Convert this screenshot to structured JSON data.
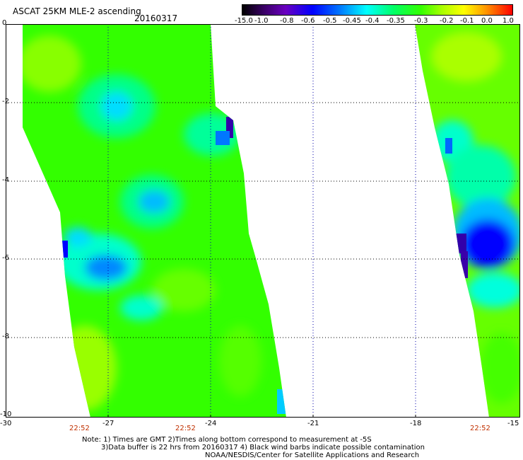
{
  "header": {
    "title": "ASCAT 25KM MLE-2 ascending",
    "date": "20160317"
  },
  "colorbar": {
    "ticks": [
      "-15.0",
      "-1.0",
      "-0.8",
      "-0.6",
      "-0.5",
      "-0.45",
      "-0.4",
      "-0.35",
      "-0.3",
      "-0.2",
      "-0.1",
      "0.0",
      "1.0"
    ]
  },
  "axes": {
    "x_ticks": [
      "-30",
      "-27",
      "-24",
      "-21",
      "-18",
      "-15"
    ],
    "y_ticks": [
      "0",
      "-2",
      "-4",
      "-6",
      "-8",
      "-10"
    ],
    "time_labels": [
      "22:52",
      "22:52",
      "22:52"
    ]
  },
  "footer": {
    "line1": "Note: 1) Times are GMT 2)Times along bottom correspond to measurement at -5S",
    "line2": "3)Data buffer is 22 hrs from 20160317 4) Black wind barbs indicate possible contamination",
    "line3": "NOAA/NESDIS/Center for Satellite Applications and Research"
  },
  "colors": {
    "low": "#0000ff",
    "mid": "#00ffff",
    "high": "#33ff00",
    "max": "#ff0000"
  }
}
